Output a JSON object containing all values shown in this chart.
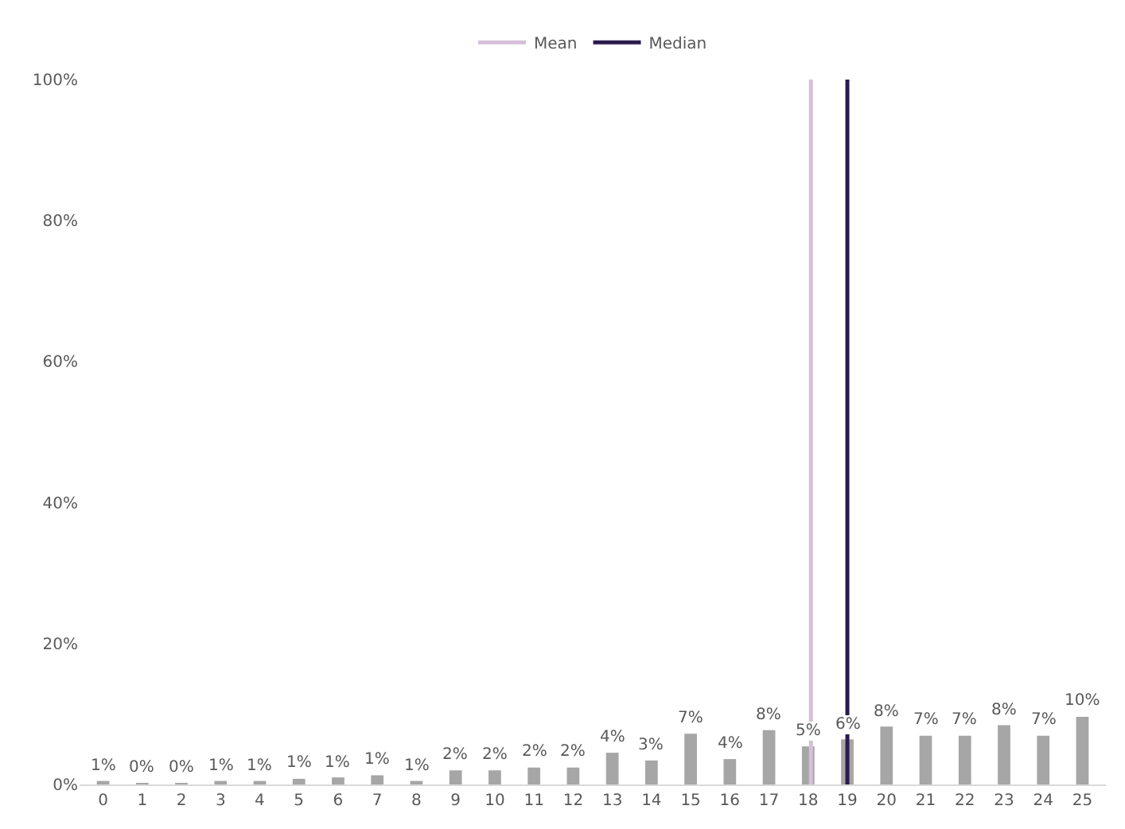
{
  "chart_data": {
    "type": "bar",
    "x": [
      0,
      1,
      2,
      3,
      4,
      5,
      6,
      7,
      8,
      9,
      10,
      11,
      12,
      13,
      14,
      15,
      16,
      17,
      18,
      19,
      20,
      21,
      22,
      23,
      24,
      25
    ],
    "xlim": [
      -0.6,
      25.6
    ],
    "xticks": [
      0,
      1,
      2,
      3,
      4,
      5,
      6,
      7,
      8,
      9,
      10,
      11,
      12,
      13,
      14,
      15,
      16,
      17,
      18,
      19,
      20,
      21,
      22,
      23,
      24,
      25
    ],
    "values": [
      0.5,
      0.2,
      0.2,
      0.5,
      0.5,
      0.8,
      1.0,
      1.3,
      0.5,
      2.0,
      2.0,
      2.4,
      2.4,
      4.5,
      3.4,
      7.2,
      3.6,
      7.7,
      5.4,
      6.4,
      8.2,
      6.9,
      6.9,
      8.4,
      6.9,
      9.6
    ],
    "value_labels": [
      "1%",
      "0%",
      "0%",
      "1%",
      "1%",
      "1%",
      "1%",
      "1%",
      "1%",
      "2%",
      "2%",
      "2%",
      "2%",
      "4%",
      "3%",
      "7%",
      "4%",
      "8%",
      "5%",
      "6%",
      "8%",
      "7%",
      "7%",
      "8%",
      "7%",
      "10%"
    ],
    "color": "#a6a6a6",
    "ylim": [
      0,
      100
    ],
    "yticks": [
      {
        "value": 0,
        "label": "0%"
      },
      {
        "value": 20,
        "label": "20%"
      },
      {
        "value": 40,
        "label": "40%"
      },
      {
        "value": 60,
        "label": "60%"
      },
      {
        "value": 80,
        "label": "80%"
      },
      {
        "value": 100,
        "label": "100%"
      }
    ],
    "ref_lines": [
      {
        "axis": "x",
        "value": 18.07,
        "label": "Mean",
        "color": "#d5c0d8"
      },
      {
        "axis": "x",
        "value": 19,
        "label": "Median",
        "color": "#2b1a4c"
      }
    ],
    "grid": false,
    "legend": "top"
  }
}
